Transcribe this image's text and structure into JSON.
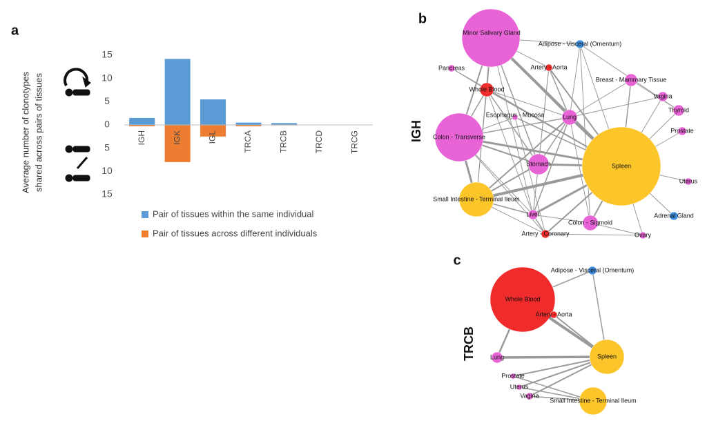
{
  "chart_data": {
    "type": "bar",
    "panel_label": "a",
    "ylabel": [
      "Average  number of clonotypes",
      "shared across pairs of tissues"
    ],
    "categories": [
      "IGH",
      "IGK",
      "IGL",
      "TRCA",
      "TRCB",
      "TRCD",
      "TRCG"
    ],
    "series": [
      {
        "name": "Pair of tissues within the same individual",
        "color": "#5b9bd5",
        "values": [
          1.5,
          14.2,
          5.5,
          0.5,
          0.4,
          0,
          0
        ]
      },
      {
        "name": "Pair of tissues across different individuals",
        "color": "#ed7d31",
        "values": [
          -0.3,
          -8,
          -2.5,
          -0.3,
          -0.1,
          0,
          0
        ]
      }
    ],
    "ylim": [
      -15,
      15
    ],
    "yticks": [
      15,
      10,
      5,
      0,
      {
        "value": -5,
        "label": "5"
      },
      {
        "value": -10,
        "label": "10"
      },
      {
        "value": -15,
        "label": "15"
      }
    ],
    "grid": false
  },
  "networks": [
    {
      "panel_label": "b",
      "title": "IGH",
      "nodes": [
        {
          "label": "Minor Salivary Gland",
          "color": "#e864d6"
        },
        {
          "label": "Adipose - Visceral (Omentum)",
          "color": "#3f8fe0"
        },
        {
          "label": "Pancreas",
          "color": "#e864d6"
        },
        {
          "label": "Artery - Aorta",
          "color": "#ef2b2b"
        },
        {
          "label": "Breast - Mammary Tissue",
          "color": "#e864d6"
        },
        {
          "label": "Whole Blood",
          "color": "#ef2b2b"
        },
        {
          "label": "Vagina",
          "color": "#e864d6"
        },
        {
          "label": "Thyroid",
          "color": "#e864d6"
        },
        {
          "label": "Esophagus - Mucosa",
          "color": "#e864d6"
        },
        {
          "label": "Lung",
          "color": "#e864d6"
        },
        {
          "label": "Prostate",
          "color": "#e864d6"
        },
        {
          "label": "Colon - Transverse",
          "color": "#e864d6"
        },
        {
          "label": "Spleen",
          "color": "#fcc52a"
        },
        {
          "label": "Stomach",
          "color": "#e864d6"
        },
        {
          "label": "Uterus",
          "color": "#e864d6"
        },
        {
          "label": "Small Intestine - Terminal Ileum",
          "color": "#fcc52a"
        },
        {
          "label": "Adrenal Gland",
          "color": "#3f8fe0"
        },
        {
          "label": "Liver",
          "color": "#e864d6"
        },
        {
          "label": "Colon - Sigmoid",
          "color": "#e864d6"
        },
        {
          "label": "Artery - Coronary",
          "color": "#ef2b2b"
        },
        {
          "label": "Ovary",
          "color": "#e864d6"
        }
      ]
    },
    {
      "panel_label": "c",
      "title": "TRCB",
      "nodes": [
        {
          "label": "Adipose - Visceral (Omentum)",
          "color": "#3f8fe0"
        },
        {
          "label": "Whole Blood",
          "color": "#ef2b2b"
        },
        {
          "label": "Artery - Aorta",
          "color": "#ef2b2b"
        },
        {
          "label": "Lung",
          "color": "#e864d6"
        },
        {
          "label": "Spleen",
          "color": "#fcc52a"
        },
        {
          "label": "Prostate",
          "color": "#e864d6"
        },
        {
          "label": "Uterus",
          "color": "#e864d6"
        },
        {
          "label": "Vagina",
          "color": "#e864d6"
        },
        {
          "label": "Small Intestine - Terminal Ileum",
          "color": "#fcc52a"
        }
      ]
    }
  ]
}
